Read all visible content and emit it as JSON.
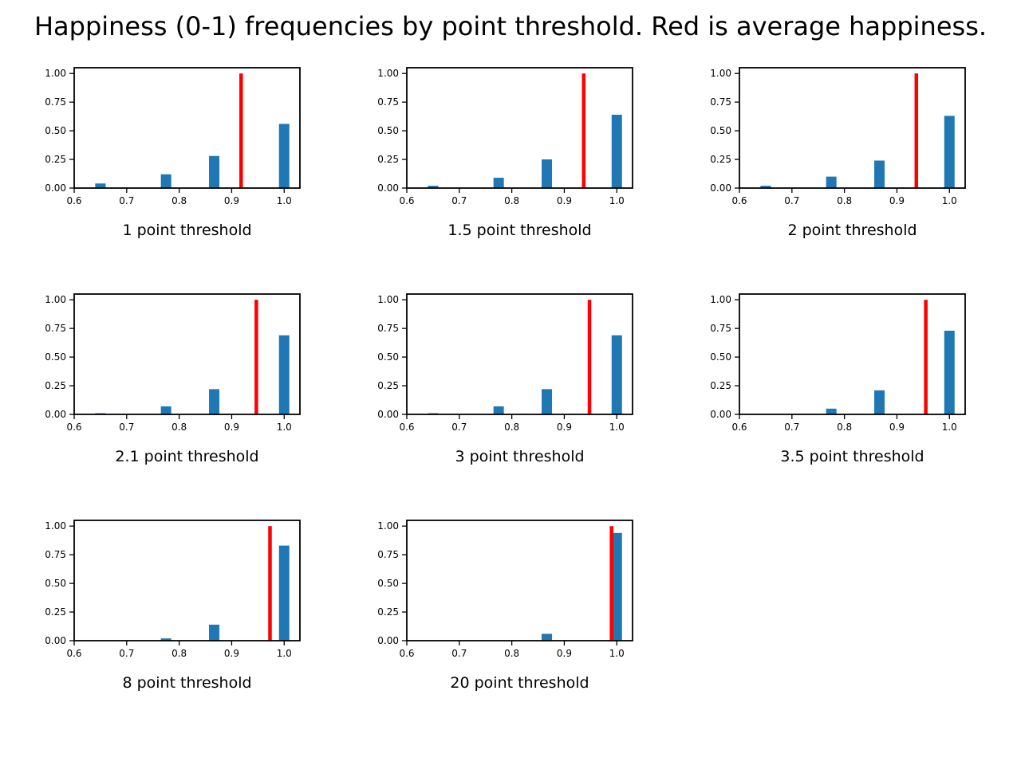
{
  "figure": {
    "title": "Happiness (0-1) frequencies by point threshold. Red is average happiness."
  },
  "colors": {
    "bar": "#1f77b4",
    "average_line": "#ff0000",
    "axis": "#000000"
  },
  "chart_data": [
    {
      "type": "bar",
      "xlabel": "1 point threshold",
      "xlim": [
        0.6,
        1.03
      ],
      "ylim": [
        0,
        1.05
      ],
      "xticks": [
        "0.6",
        "0.7",
        "0.8",
        "0.9",
        "1.0"
      ],
      "yticks": [
        "0.00",
        "0.25",
        "0.50",
        "0.75",
        "1.00"
      ],
      "x": [
        0.65,
        0.775,
        0.8667,
        1.0
      ],
      "values": [
        0.04,
        0.12,
        0.28,
        0.56
      ],
      "average": 0.918
    },
    {
      "type": "bar",
      "xlabel": "1.5 point threshold",
      "xlim": [
        0.6,
        1.03
      ],
      "ylim": [
        0,
        1.05
      ],
      "xticks": [
        "0.6",
        "0.7",
        "0.8",
        "0.9",
        "1.0"
      ],
      "yticks": [
        "0.00",
        "0.25",
        "0.50",
        "0.75",
        "1.00"
      ],
      "x": [
        0.65,
        0.775,
        0.8667,
        1.0
      ],
      "values": [
        0.02,
        0.09,
        0.25,
        0.64
      ],
      "average": 0.937
    },
    {
      "type": "bar",
      "xlabel": "2 point threshold",
      "xlim": [
        0.6,
        1.03
      ],
      "ylim": [
        0,
        1.05
      ],
      "xticks": [
        "0.6",
        "0.7",
        "0.8",
        "0.9",
        "1.0"
      ],
      "yticks": [
        "0.00",
        "0.25",
        "0.50",
        "0.75",
        "1.00"
      ],
      "x": [
        0.65,
        0.775,
        0.8667,
        1.0
      ],
      "values": [
        0.02,
        0.1,
        0.24,
        0.63
      ],
      "average": 0.937
    },
    {
      "type": "bar",
      "xlabel": "2.1 point threshold",
      "xlim": [
        0.6,
        1.03
      ],
      "ylim": [
        0,
        1.05
      ],
      "xticks": [
        "0.6",
        "0.7",
        "0.8",
        "0.9",
        "1.0"
      ],
      "yticks": [
        "0.00",
        "0.25",
        "0.50",
        "0.75",
        "1.00"
      ],
      "x": [
        0.65,
        0.775,
        0.8667,
        1.0
      ],
      "values": [
        0.01,
        0.07,
        0.22,
        0.69
      ],
      "average": 0.947
    },
    {
      "type": "bar",
      "xlabel": "3 point threshold",
      "xlim": [
        0.6,
        1.03
      ],
      "ylim": [
        0,
        1.05
      ],
      "xticks": [
        "0.6",
        "0.7",
        "0.8",
        "0.9",
        "1.0"
      ],
      "yticks": [
        "0.00",
        "0.25",
        "0.50",
        "0.75",
        "1.00"
      ],
      "x": [
        0.65,
        0.775,
        0.8667,
        1.0
      ],
      "values": [
        0.01,
        0.07,
        0.22,
        0.69
      ],
      "average": 0.948
    },
    {
      "type": "bar",
      "xlabel": "3.5 point threshold",
      "xlim": [
        0.6,
        1.03
      ],
      "ylim": [
        0,
        1.05
      ],
      "xticks": [
        "0.6",
        "0.7",
        "0.8",
        "0.9",
        "1.0"
      ],
      "yticks": [
        "0.00",
        "0.25",
        "0.50",
        "0.75",
        "1.00"
      ],
      "x": [
        0.775,
        0.8667,
        1.0
      ],
      "values": [
        0.05,
        0.21,
        0.73
      ],
      "average": 0.955
    },
    {
      "type": "bar",
      "xlabel": "8 point threshold",
      "xlim": [
        0.6,
        1.03
      ],
      "ylim": [
        0,
        1.05
      ],
      "xticks": [
        "0.6",
        "0.7",
        "0.8",
        "0.9",
        "1.0"
      ],
      "yticks": [
        "0.00",
        "0.25",
        "0.50",
        "0.75",
        "1.00"
      ],
      "x": [
        0.775,
        0.8667,
        1.0
      ],
      "values": [
        0.02,
        0.14,
        0.83
      ],
      "average": 0.973
    },
    {
      "type": "bar",
      "xlabel": "20 point threshold",
      "xlim": [
        0.6,
        1.03
      ],
      "ylim": [
        0,
        1.05
      ],
      "xticks": [
        "0.6",
        "0.7",
        "0.8",
        "0.9",
        "1.0"
      ],
      "yticks": [
        "0.00",
        "0.25",
        "0.50",
        "0.75",
        "1.00"
      ],
      "x": [
        0.8667,
        1.0
      ],
      "values": [
        0.06,
        0.94
      ],
      "average": 0.99
    }
  ]
}
